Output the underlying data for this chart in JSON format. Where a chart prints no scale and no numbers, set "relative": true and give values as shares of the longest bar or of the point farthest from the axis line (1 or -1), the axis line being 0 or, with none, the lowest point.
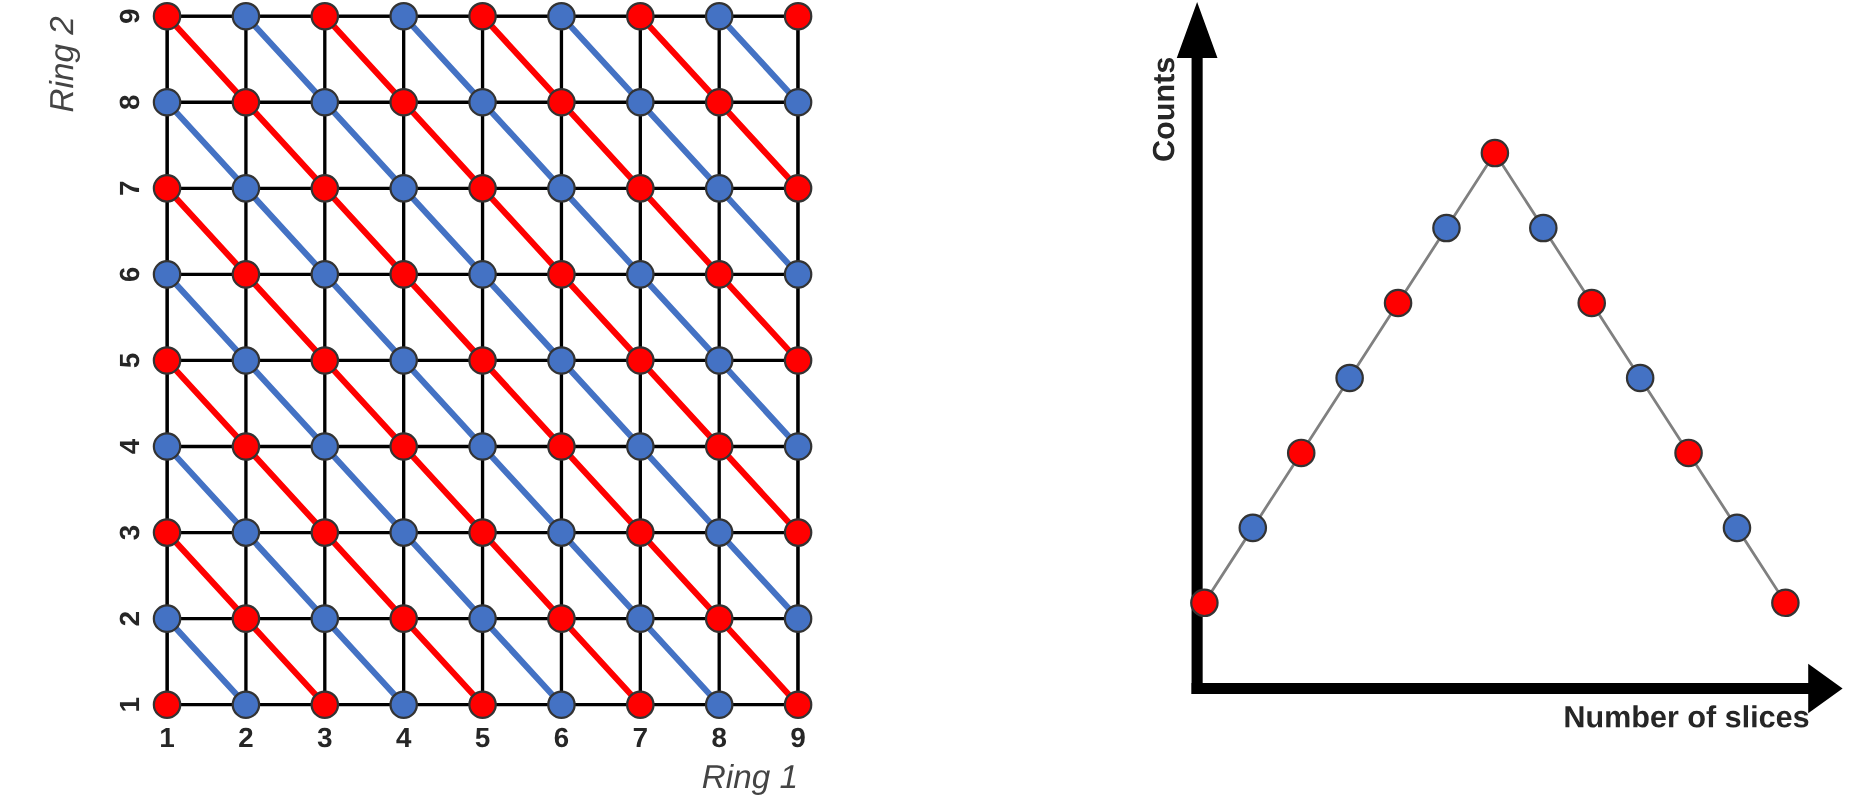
{
  "chart_data": [
    {
      "type": "scatter",
      "xlabel": "Ring 1",
      "ylabel": "Ring 2",
      "xlim": [
        1,
        9
      ],
      "ylim": [
        1,
        9
      ],
      "xticks": [
        1,
        2,
        3,
        4,
        5,
        6,
        7,
        8,
        9
      ],
      "yticks": [
        1,
        2,
        3,
        4,
        5,
        6,
        7,
        8,
        9
      ],
      "grid": true,
      "marker": "none",
      "series": [
        {
          "type": "line",
          "color": "#4472c4",
          "x": [
            1,
            2
          ],
          "values": [
            2,
            1
          ]
        },
        {
          "type": "line",
          "color": "#ff0000",
          "x": [
            1,
            3
          ],
          "values": [
            3,
            1
          ]
        },
        {
          "type": "line",
          "color": "#4472c4",
          "x": [
            1,
            4
          ],
          "values": [
            4,
            1
          ]
        },
        {
          "type": "line",
          "color": "#ff0000",
          "x": [
            1,
            5
          ],
          "values": [
            5,
            1
          ]
        },
        {
          "type": "line",
          "color": "#4472c4",
          "x": [
            1,
            6
          ],
          "values": [
            6,
            1
          ]
        },
        {
          "type": "line",
          "color": "#ff0000",
          "x": [
            1,
            7
          ],
          "values": [
            7,
            1
          ]
        },
        {
          "type": "line",
          "color": "#4472c4",
          "x": [
            1,
            8
          ],
          "values": [
            8,
            1
          ]
        },
        {
          "type": "line",
          "color": "#ff0000",
          "x": [
            1,
            9
          ],
          "values": [
            9,
            1
          ]
        },
        {
          "type": "line",
          "color": "#4472c4",
          "x": [
            2,
            9
          ],
          "values": [
            9,
            2
          ]
        },
        {
          "type": "line",
          "color": "#ff0000",
          "x": [
            3,
            9
          ],
          "values": [
            9,
            3
          ]
        },
        {
          "type": "line",
          "color": "#4472c4",
          "x": [
            4,
            9
          ],
          "values": [
            9,
            4
          ]
        },
        {
          "type": "line",
          "color": "#ff0000",
          "x": [
            5,
            9
          ],
          "values": [
            9,
            5
          ]
        },
        {
          "type": "line",
          "color": "#4472c4",
          "x": [
            6,
            9
          ],
          "values": [
            9,
            6
          ]
        },
        {
          "type": "line",
          "color": "#ff0000",
          "x": [
            7,
            9
          ],
          "values": [
            9,
            7
          ]
        },
        {
          "type": "line",
          "color": "#4472c4",
          "x": [
            8,
            9
          ],
          "values": [
            9,
            8
          ]
        },
        {
          "type": "scatter",
          "marker": "circle",
          "color": "#ff0000",
          "x": [
            1,
            3,
            5,
            7,
            9,
            2,
            4,
            6,
            8,
            1,
            3,
            5,
            7,
            9,
            2,
            4,
            6,
            8,
            1,
            3,
            5,
            7,
            9,
            2,
            4,
            6,
            8,
            1,
            3,
            5,
            7,
            9,
            2,
            4,
            6,
            8,
            1,
            3,
            5,
            7,
            9
          ],
          "values": [
            1,
            1,
            1,
            1,
            1,
            2,
            2,
            2,
            2,
            3,
            3,
            3,
            3,
            3,
            4,
            4,
            4,
            4,
            5,
            5,
            5,
            5,
            5,
            6,
            6,
            6,
            6,
            7,
            7,
            7,
            7,
            7,
            8,
            8,
            8,
            8,
            9,
            9,
            9,
            9,
            9
          ]
        },
        {
          "type": "scatter",
          "marker": "circle",
          "color": "#4472c4",
          "x": [
            2,
            4,
            6,
            8,
            1,
            3,
            5,
            7,
            9,
            2,
            4,
            6,
            8,
            1,
            3,
            5,
            7,
            9,
            2,
            4,
            6,
            8,
            1,
            3,
            5,
            7,
            9,
            2,
            4,
            6,
            8,
            1,
            3,
            5,
            7,
            9,
            2,
            4,
            6,
            8
          ],
          "values": [
            1,
            1,
            1,
            1,
            2,
            2,
            2,
            2,
            2,
            3,
            3,
            3,
            3,
            4,
            4,
            4,
            4,
            4,
            5,
            5,
            5,
            5,
            6,
            6,
            6,
            6,
            6,
            7,
            7,
            7,
            7,
            8,
            8,
            8,
            8,
            8,
            9,
            9,
            9,
            9
          ]
        }
      ]
    },
    {
      "type": "line",
      "xlabel": "Number of slices",
      "ylabel": "Counts",
      "relative": true,
      "tick_labels": false,
      "marker": "circle",
      "categories": [
        null,
        null,
        null,
        null,
        null,
        null,
        null,
        null,
        null,
        null,
        null,
        null,
        null
      ],
      "series": [
        {
          "color": "#808080",
          "colors": [
            "#ff0000",
            "#4472c4",
            "#ff0000",
            "#4472c4",
            "#ff0000",
            "#4472c4",
            "#ff0000",
            "#4472c4",
            "#ff0000",
            "#4472c4",
            "#ff0000",
            "#4472c4",
            "#ff0000"
          ],
          "values": [
            0.16,
            0.3,
            0.44,
            0.58,
            0.72,
            0.86,
            1.0,
            0.86,
            0.72,
            0.58,
            0.44,
            0.3,
            0.16
          ]
        }
      ]
    }
  ]
}
